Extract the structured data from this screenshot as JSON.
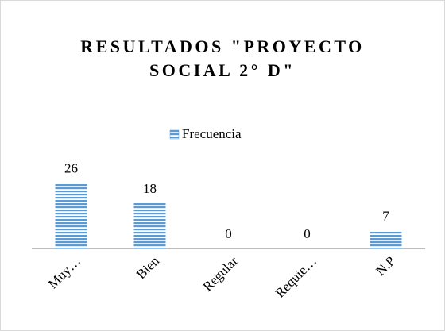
{
  "chart_data": {
    "type": "bar",
    "title": "RESULTADOS \"PROYECTO SOCIAL 2° D\"",
    "categories": [
      "Muy…",
      "Bien",
      "Regular",
      "Requie…",
      "N.P"
    ],
    "series": [
      {
        "name": "Frecuencia",
        "color": "#5b9bd5",
        "values": [
          26,
          18,
          0,
          0,
          7
        ]
      }
    ],
    "ylim": [
      0,
      30
    ]
  }
}
